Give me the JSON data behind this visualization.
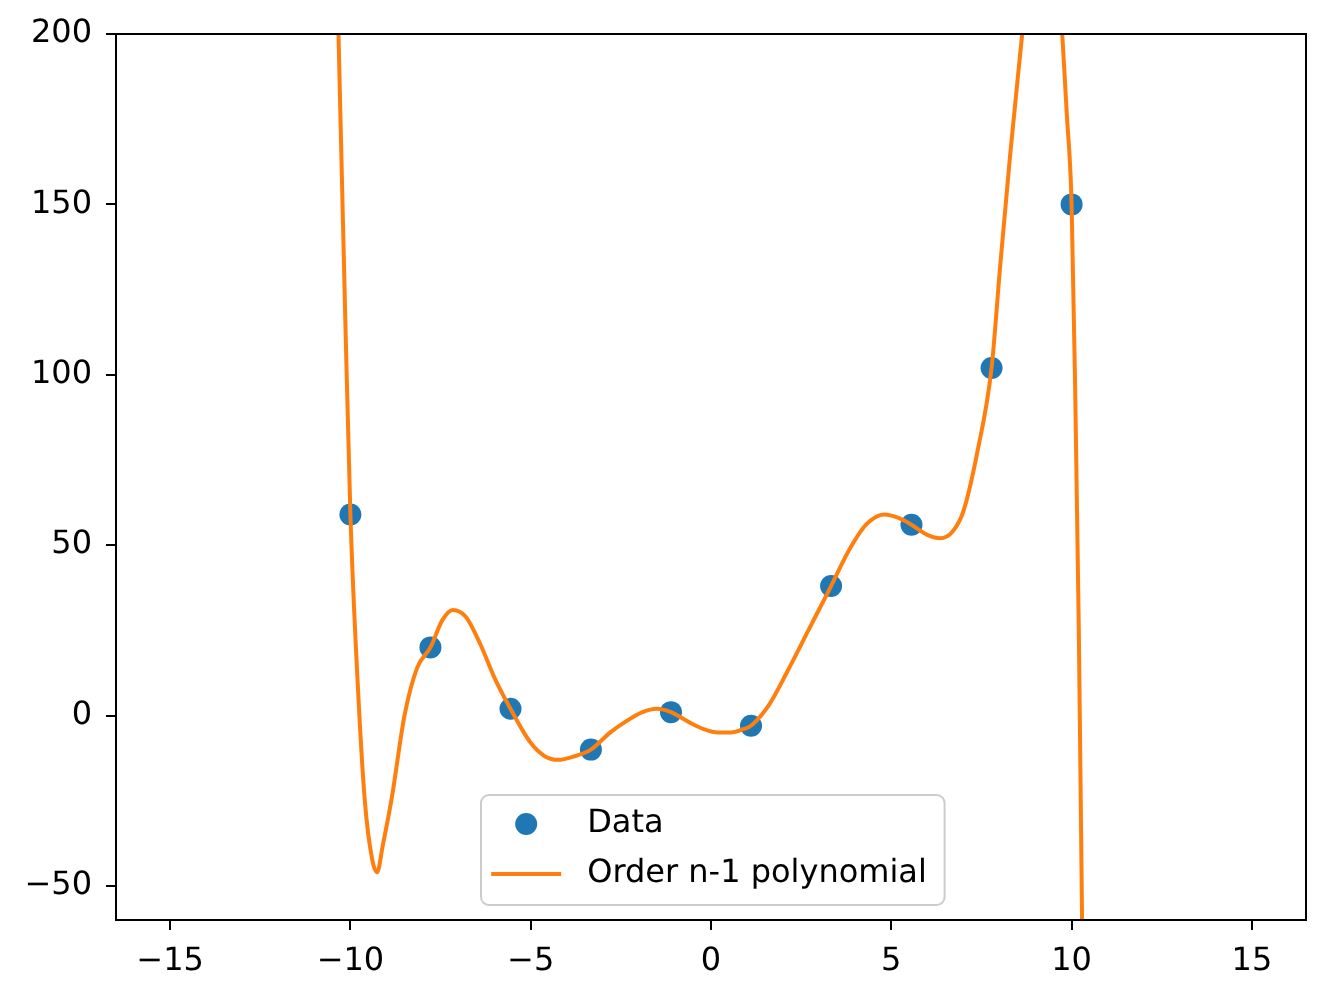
{
  "chart_data": {
    "type": "scatter",
    "xlim": [
      -16.5,
      16.5
    ],
    "xticks": [
      -15,
      -10,
      -5,
      0,
      5,
      10,
      15
    ],
    "ylim": [
      -60,
      200
    ],
    "yticks": [
      -50,
      0,
      50,
      100,
      150,
      200
    ],
    "grid": false,
    "legend": "bottom",
    "series": [
      {
        "name": "Data",
        "color": "#1f77b4",
        "marker": "circle",
        "x": [
          -10,
          -7.78,
          -5.56,
          -3.33,
          -1.11,
          1.11,
          3.33,
          5.56,
          7.78,
          10
        ],
        "values": [
          59,
          20,
          2,
          -10,
          1,
          -3,
          38,
          56,
          102,
          150
        ]
      },
      {
        "name": "Order n-1 polynomial",
        "type": "line",
        "color": "#ff7f0e",
        "x": [
          -10.33,
          -10.15,
          -10,
          -9.8,
          -9.6,
          -9.4,
          -9.26,
          -9.1,
          -8.85,
          -8.5,
          -8.15,
          -7.78,
          -7.45,
          -7.16,
          -6.8,
          -6.4,
          -6,
          -5.56,
          -5,
          -4.6,
          -4.24,
          -3.8,
          -3.33,
          -2.8,
          -2.4,
          -1.9,
          -1.5,
          -1.11,
          -0.6,
          -0.2,
          0.2,
          0.55,
          0.9,
          1.11,
          1.6,
          2.12,
          2.7,
          3.33,
          3.8,
          4.3,
          4.8,
          5.2,
          5.56,
          6,
          6.36,
          6.7,
          7,
          7.38,
          7.78,
          8.02,
          8.3,
          8.63,
          9.2,
          9.74,
          9.87,
          10,
          10.1,
          10.2,
          10.29
        ],
        "values": [
          200,
          120,
          59,
          10,
          -25,
          -42,
          -46,
          -38,
          -24,
          0,
          14,
          20,
          28,
          31,
          29,
          21,
          11,
          2,
          -8,
          -12,
          -13,
          -12,
          -10,
          -5,
          -2,
          1,
          2,
          1,
          -2,
          -4,
          -5,
          -5,
          -4,
          -3,
          3,
          13,
          25,
          38,
          48,
          56,
          59,
          58,
          56,
          53,
          52,
          54,
          60,
          77,
          102,
          132,
          165,
          200,
          null,
          200,
          176,
          150,
          95,
          25,
          -60
        ]
      }
    ]
  }
}
